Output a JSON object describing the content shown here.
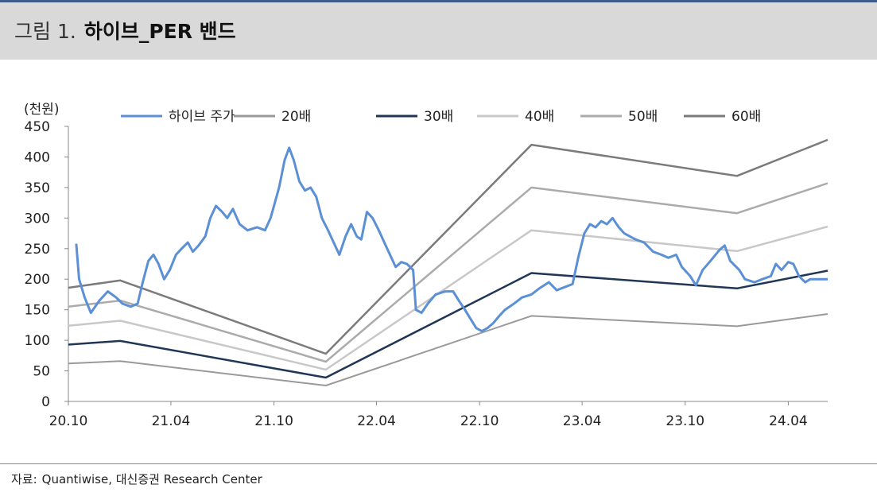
{
  "header": {
    "figure_no": "그림 1.",
    "title": "하이브_PER 밴드"
  },
  "source": {
    "label": "자료:",
    "text": "Quantiwise, 대신증권 Research Center"
  },
  "colors": {
    "header_bg": "#d9d9d9",
    "top_rule": "#3b5b86",
    "price": "#5b8fd6"
  },
  "chart_data": {
    "type": "line",
    "unit_label": "(천원)",
    "ylim": [
      0,
      450
    ],
    "yticks": [
      0,
      50,
      100,
      150,
      200,
      250,
      300,
      350,
      400,
      450
    ],
    "xlim": [
      "2020-10-01",
      "2024-06-10"
    ],
    "xticks": [
      {
        "date": "2020-10-01",
        "label": "20.10"
      },
      {
        "date": "2021-04-01",
        "label": "21.04"
      },
      {
        "date": "2021-10-01",
        "label": "21.10"
      },
      {
        "date": "2022-04-01",
        "label": "22.04"
      },
      {
        "date": "2022-10-01",
        "label": "22.10"
      },
      {
        "date": "2023-04-01",
        "label": "23.04"
      },
      {
        "date": "2023-10-01",
        "label": "23.10"
      },
      {
        "date": "2024-04-01",
        "label": "24.04"
      }
    ],
    "grid": false,
    "legend_position": "top",
    "band_dates": [
      "2020-10-01",
      "2021-01-01",
      "2022-01-01",
      "2023-01-01",
      "2024-01-01",
      "2024-06-10"
    ],
    "series": [
      {
        "name": "하이브 주가",
        "color": "#5b8fd6",
        "width": 3,
        "points": [
          [
            "2020-10-15",
            258
          ],
          [
            "2020-10-20",
            200
          ],
          [
            "2020-10-30",
            170
          ],
          [
            "2020-11-10",
            145
          ],
          [
            "2020-11-25",
            165
          ],
          [
            "2020-12-10",
            180
          ],
          [
            "2020-12-25",
            170
          ],
          [
            "2021-01-05",
            160
          ],
          [
            "2021-01-20",
            155
          ],
          [
            "2021-02-01",
            160
          ],
          [
            "2021-02-10",
            195
          ],
          [
            "2021-02-20",
            230
          ],
          [
            "2021-03-01",
            240
          ],
          [
            "2021-03-10",
            225
          ],
          [
            "2021-03-20",
            200
          ],
          [
            "2021-03-30",
            215
          ],
          [
            "2021-04-10",
            240
          ],
          [
            "2021-04-20",
            250
          ],
          [
            "2021-05-01",
            260
          ],
          [
            "2021-05-10",
            245
          ],
          [
            "2021-05-20",
            255
          ],
          [
            "2021-06-01",
            270
          ],
          [
            "2021-06-10",
            300
          ],
          [
            "2021-06-20",
            320
          ],
          [
            "2021-07-01",
            310
          ],
          [
            "2021-07-10",
            300
          ],
          [
            "2021-07-20",
            315
          ],
          [
            "2021-08-01",
            290
          ],
          [
            "2021-08-15",
            280
          ],
          [
            "2021-09-01",
            285
          ],
          [
            "2021-09-15",
            280
          ],
          [
            "2021-09-25",
            300
          ],
          [
            "2021-10-10",
            350
          ],
          [
            "2021-10-20",
            395
          ],
          [
            "2021-10-28",
            415
          ],
          [
            "2021-11-05",
            395
          ],
          [
            "2021-11-15",
            360
          ],
          [
            "2021-11-25",
            345
          ],
          [
            "2021-12-05",
            350
          ],
          [
            "2021-12-15",
            335
          ],
          [
            "2021-12-25",
            300
          ],
          [
            "2022-01-05",
            280
          ],
          [
            "2022-01-15",
            260
          ],
          [
            "2022-01-25",
            240
          ],
          [
            "2022-02-05",
            270
          ],
          [
            "2022-02-15",
            290
          ],
          [
            "2022-02-25",
            270
          ],
          [
            "2022-03-05",
            265
          ],
          [
            "2022-03-15",
            310
          ],
          [
            "2022-03-25",
            300
          ],
          [
            "2022-04-05",
            280
          ],
          [
            "2022-04-15",
            260
          ],
          [
            "2022-04-25",
            240
          ],
          [
            "2022-05-05",
            220
          ],
          [
            "2022-05-15",
            228
          ],
          [
            "2022-05-25",
            225
          ],
          [
            "2022-06-05",
            215
          ],
          [
            "2022-06-10",
            150
          ],
          [
            "2022-06-20",
            145
          ],
          [
            "2022-07-01",
            160
          ],
          [
            "2022-07-15",
            175
          ],
          [
            "2022-08-01",
            180
          ],
          [
            "2022-08-15",
            180
          ],
          [
            "2022-08-25",
            165
          ],
          [
            "2022-09-05",
            150
          ],
          [
            "2022-09-15",
            135
          ],
          [
            "2022-09-25",
            120
          ],
          [
            "2022-10-05",
            115
          ],
          [
            "2022-10-15",
            120
          ],
          [
            "2022-10-25",
            128
          ],
          [
            "2022-11-05",
            140
          ],
          [
            "2022-11-15",
            150
          ],
          [
            "2022-12-01",
            160
          ],
          [
            "2022-12-15",
            170
          ],
          [
            "2023-01-01",
            175
          ],
          [
            "2023-01-15",
            185
          ],
          [
            "2023-02-01",
            195
          ],
          [
            "2023-02-15",
            182
          ],
          [
            "2023-03-01",
            187
          ],
          [
            "2023-03-15",
            192
          ],
          [
            "2023-03-25",
            235
          ],
          [
            "2023-04-05",
            275
          ],
          [
            "2023-04-15",
            290
          ],
          [
            "2023-04-25",
            285
          ],
          [
            "2023-05-05",
            295
          ],
          [
            "2023-05-15",
            290
          ],
          [
            "2023-05-25",
            300
          ],
          [
            "2023-06-05",
            285
          ],
          [
            "2023-06-15",
            275
          ],
          [
            "2023-06-25",
            270
          ],
          [
            "2023-07-05",
            265
          ],
          [
            "2023-07-20",
            260
          ],
          [
            "2023-08-05",
            245
          ],
          [
            "2023-08-20",
            240
          ],
          [
            "2023-09-01",
            235
          ],
          [
            "2023-09-15",
            240
          ],
          [
            "2023-09-25",
            220
          ],
          [
            "2023-10-10",
            205
          ],
          [
            "2023-10-20",
            190
          ],
          [
            "2023-11-01",
            215
          ],
          [
            "2023-11-15",
            230
          ],
          [
            "2023-12-01",
            248
          ],
          [
            "2023-12-10",
            255
          ],
          [
            "2023-12-20",
            230
          ],
          [
            "2024-01-05",
            215
          ],
          [
            "2024-01-15",
            200
          ],
          [
            "2024-02-01",
            195
          ],
          [
            "2024-02-15",
            200
          ],
          [
            "2024-03-01",
            205
          ],
          [
            "2024-03-10",
            225
          ],
          [
            "2024-03-20",
            215
          ],
          [
            "2024-04-01",
            228
          ],
          [
            "2024-04-10",
            225
          ],
          [
            "2024-04-20",
            205
          ],
          [
            "2024-05-01",
            195
          ],
          [
            "2024-05-10",
            200
          ],
          [
            "2024-05-20",
            200
          ],
          [
            "2024-06-01",
            200
          ],
          [
            "2024-06-10",
            200
          ]
        ]
      },
      {
        "name": "20배",
        "color": "#9a9a9a",
        "width": 2,
        "values": [
          62,
          66,
          26,
          140,
          123,
          143
        ]
      },
      {
        "name": "30배",
        "color": "#1f3655",
        "width": 2.5,
        "values": [
          93,
          99,
          39,
          210,
          185,
          214
        ]
      },
      {
        "name": "40배",
        "color": "#c8c8c8",
        "width": 2.5,
        "values": [
          124,
          132,
          52,
          280,
          246,
          286
        ]
      },
      {
        "name": "50배",
        "color": "#ababab",
        "width": 2.5,
        "values": [
          155,
          165,
          65,
          350,
          308,
          357
        ]
      },
      {
        "name": "60배",
        "color": "#7b7b7b",
        "width": 2.5,
        "values": [
          186,
          198,
          78,
          420,
          369,
          428
        ]
      }
    ]
  }
}
